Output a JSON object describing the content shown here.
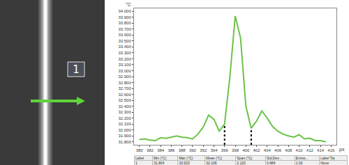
{
  "chart_data": {
    "type": "line",
    "x_label": "px",
    "y_label": "°C",
    "x": [
      380,
      381,
      382,
      383,
      384,
      385,
      386,
      387,
      388,
      389,
      390,
      391,
      392,
      393,
      394,
      395,
      396,
      397,
      398,
      399,
      400,
      401,
      402,
      403,
      404,
      405,
      406,
      407,
      408,
      409,
      410,
      411,
      412,
      413,
      414,
      415
    ],
    "values": [
      31.84,
      31.85,
      31.83,
      31.82,
      31.87,
      31.86,
      31.88,
      31.9,
      31.88,
      31.87,
      31.85,
      31.93,
      32.05,
      32.25,
      32.18,
      31.98,
      32.1,
      32.9,
      33.92,
      33.55,
      32.4,
      32.03,
      32.15,
      32.32,
      32.2,
      32.06,
      31.98,
      31.93,
      31.9,
      31.88,
      31.92,
      31.85,
      31.86,
      31.82,
      31.82,
      31.8
    ],
    "color": "#6cc24a",
    "xlim": [
      379,
      417
    ],
    "xticks": [
      380,
      382,
      384,
      386,
      388,
      390,
      392,
      394,
      396,
      398,
      400,
      402,
      404,
      406,
      408,
      410,
      412,
      414,
      416
    ],
    "ylim": [
      31.75,
      34.05
    ],
    "yticks": [
      {
        "value": 31.8,
        "label": "31.800"
      },
      {
        "value": 31.9,
        "label": "31.900"
      },
      {
        "value": 32.0,
        "label": "32.000"
      },
      {
        "value": 32.1,
        "label": "32.100"
      },
      {
        "value": 32.2,
        "label": "32.200"
      },
      {
        "value": 32.3,
        "label": "32.300"
      },
      {
        "value": 32.4,
        "label": "32.400"
      },
      {
        "value": 32.5,
        "label": "32.500"
      },
      {
        "value": 32.6,
        "label": "32.600"
      },
      {
        "value": 32.7,
        "label": "32.700"
      },
      {
        "value": 32.8,
        "label": "32.800"
      },
      {
        "value": 32.9,
        "label": "32.900"
      },
      {
        "value": 33.0,
        "label": "33.000"
      },
      {
        "value": 33.1,
        "label": "33.100"
      },
      {
        "value": 33.2,
        "label": "33.200"
      },
      {
        "value": 33.3,
        "label": "33.300"
      },
      {
        "value": 33.4,
        "label": "33.400"
      },
      {
        "value": 33.5,
        "label": "33.500"
      },
      {
        "value": 33.6,
        "label": "33.600"
      },
      {
        "value": 33.7,
        "label": "33.700"
      },
      {
        "value": 33.8,
        "label": "33.800"
      },
      {
        "value": 33.9,
        "label": "33.900"
      },
      {
        "value": 34.0,
        "label": "34.000"
      }
    ],
    "grid": false,
    "cursor_lines": {
      "x": [
        396,
        401
      ],
      "y": [
        32.1,
        32.03
      ]
    }
  },
  "image_panel": {
    "label": "1"
  },
  "stats_table": {
    "header": [
      "Label",
      "Min (°C)",
      "Max (°C)",
      "Mean (°C)",
      "Span (°C)",
      "Std.Dev...",
      "Emiss...",
      "Label Tip"
    ],
    "row": [
      "1",
      "31.804",
      "33.923",
      "32.106",
      "2.120",
      "0.486",
      "1.00",
      "None"
    ]
  }
}
